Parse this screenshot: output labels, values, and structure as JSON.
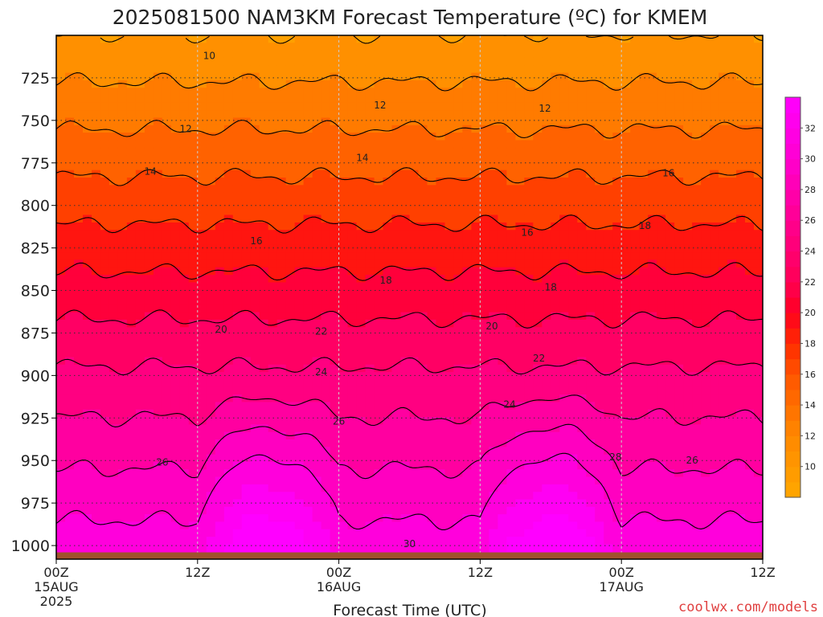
{
  "chart_data": {
    "type": "heatmap",
    "title": "2025081500 NAM3KM Forecast Temperature (ºC) for KMEM",
    "xlabel": "Forecast Time (UTC)",
    "ylabel": "",
    "credit": "coolwx.com/models",
    "x_ticks": [
      {
        "hour": 0,
        "label": "00Z",
        "sub": [
          "15AUG",
          "2025"
        ]
      },
      {
        "hour": 12,
        "label": "12Z",
        "sub": []
      },
      {
        "hour": 24,
        "label": "00Z",
        "sub": [
          "16AUG"
        ]
      },
      {
        "hour": 36,
        "label": "12Z",
        "sub": []
      },
      {
        "hour": 48,
        "label": "00Z",
        "sub": [
          "17AUG"
        ]
      },
      {
        "hour": 60,
        "label": "12Z",
        "sub": []
      }
    ],
    "xlim": [
      0,
      60
    ],
    "ylim": [
      1008,
      700
    ],
    "y_ticks": [
      725,
      750,
      775,
      800,
      825,
      850,
      875,
      900,
      925,
      950,
      975,
      1000
    ],
    "surface_pressure": 1004,
    "colorbar": {
      "ticks": [
        10,
        12,
        14,
        16,
        18,
        20,
        22,
        24,
        26,
        28,
        30,
        32
      ],
      "range": [
        8,
        34
      ],
      "stops": [
        {
          "v": 8,
          "color": "#ffa800"
        },
        {
          "v": 12,
          "color": "#ff8800"
        },
        {
          "v": 16,
          "color": "#ff5500"
        },
        {
          "v": 18,
          "color": "#ff2a00"
        },
        {
          "v": 20,
          "color": "#ff0020"
        },
        {
          "v": 22,
          "color": "#ff0055"
        },
        {
          "v": 26,
          "color": "#ff0090"
        },
        {
          "v": 30,
          "color": "#ff00d0"
        },
        {
          "v": 34,
          "color": "#ff00ff"
        }
      ]
    },
    "contour_labels": [
      {
        "text": "10",
        "hour": 13.0,
        "p": 712
      },
      {
        "text": "12",
        "hour": 27.5,
        "p": 741
      },
      {
        "text": "12",
        "hour": 41.5,
        "p": 743
      },
      {
        "text": "12",
        "hour": 11.0,
        "p": 755
      },
      {
        "text": "14",
        "hour": 26.0,
        "p": 772
      },
      {
        "text": "14",
        "hour": 8.0,
        "p": 780
      },
      {
        "text": "16",
        "hour": 52.0,
        "p": 781
      },
      {
        "text": "16",
        "hour": 17.0,
        "p": 821
      },
      {
        "text": "16",
        "hour": 40.0,
        "p": 816
      },
      {
        "text": "18",
        "hour": 50.0,
        "p": 812
      },
      {
        "text": "18",
        "hour": 28.0,
        "p": 844
      },
      {
        "text": "18",
        "hour": 42.0,
        "p": 848
      },
      {
        "text": "20",
        "hour": 14.0,
        "p": 873
      },
      {
        "text": "20",
        "hour": 37.0,
        "p": 871
      },
      {
        "text": "22",
        "hour": 22.5,
        "p": 874
      },
      {
        "text": "22",
        "hour": 41.0,
        "p": 890
      },
      {
        "text": "24",
        "hour": 22.5,
        "p": 898
      },
      {
        "text": "24",
        "hour": 38.5,
        "p": 917
      },
      {
        "text": "26",
        "hour": 24.0,
        "p": 927
      },
      {
        "text": "26",
        "hour": 9.0,
        "p": 951
      },
      {
        "text": "26",
        "hour": 54.0,
        "p": 950
      },
      {
        "text": "28",
        "hour": 47.5,
        "p": 948
      },
      {
        "text": "30",
        "hour": 30.0,
        "p": 999
      }
    ]
  }
}
